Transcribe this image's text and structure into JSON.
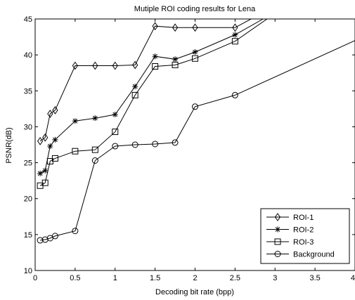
{
  "chart_data": {
    "type": "line",
    "title": "Mutiple ROI coding results for Lena",
    "xlabel": "Decoding bit rate (bpp)",
    "ylabel": "PSNR(dB)",
    "xlim": [
      0,
      4
    ],
    "ylim": [
      10,
      45
    ],
    "xticks": [
      "0",
      "0.5",
      "1",
      "1.5",
      "2",
      "2.5",
      "3",
      "3.5",
      "4"
    ],
    "yticks": [
      "10",
      "15",
      "20",
      "25",
      "30",
      "35",
      "40",
      "45"
    ],
    "grid": false,
    "legend_position": "bottom-right",
    "series": [
      {
        "name": "ROI-1",
        "marker": "diamond",
        "x": [
          0.0625,
          0.125,
          0.1875,
          0.25,
          0.5,
          0.75,
          1.0,
          1.25,
          1.5,
          1.75,
          2.0,
          2.5,
          2.7
        ],
        "y": [
          28.0,
          28.5,
          31.8,
          32.3,
          38.5,
          38.5,
          38.5,
          38.6,
          44.0,
          43.8,
          43.8,
          43.8,
          45.0
        ]
      },
      {
        "name": "ROI-2",
        "marker": "star",
        "x": [
          0.0625,
          0.125,
          0.1875,
          0.25,
          0.5,
          0.75,
          1.0,
          1.25,
          1.5,
          1.75,
          2.0,
          2.5,
          2.85
        ],
        "y": [
          23.5,
          23.9,
          27.3,
          28.2,
          30.8,
          31.2,
          31.7,
          35.6,
          39.8,
          39.4,
          40.4,
          42.8,
          45.0
        ]
      },
      {
        "name": "ROI-3",
        "marker": "square",
        "x": [
          0.0625,
          0.125,
          0.1875,
          0.25,
          0.5,
          0.75,
          1.0,
          1.25,
          1.5,
          1.75,
          2.0,
          2.5,
          2.9
        ],
        "y": [
          21.8,
          22.2,
          25.2,
          25.6,
          26.6,
          26.8,
          29.3,
          34.4,
          38.4,
          38.6,
          39.5,
          41.9,
          45.0
        ]
      },
      {
        "name": "Background",
        "marker": "circle",
        "x": [
          0.0625,
          0.125,
          0.1875,
          0.25,
          0.5,
          0.75,
          1.0,
          1.25,
          1.5,
          1.75,
          2.0,
          2.5,
          4.0
        ],
        "y": [
          14.2,
          14.3,
          14.5,
          14.8,
          15.5,
          25.3,
          27.3,
          27.5,
          27.6,
          27.8,
          32.8,
          34.4,
          42.0
        ]
      }
    ]
  }
}
